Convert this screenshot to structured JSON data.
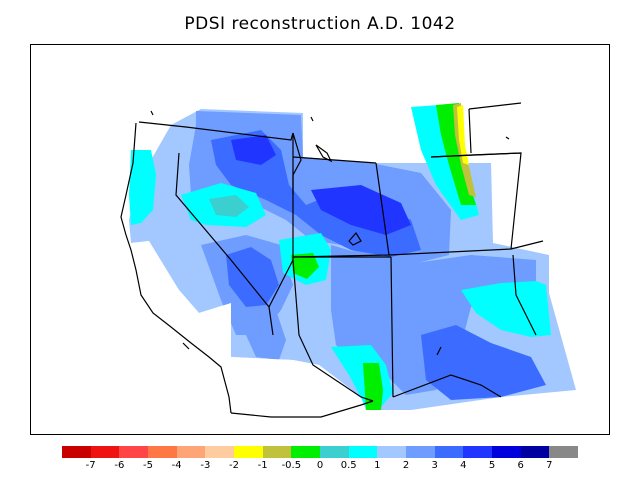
{
  "title": "PDSI reconstruction A.D. 1042",
  "legend": {
    "colors": [
      "#c90000",
      "#ee1212",
      "#ff4545",
      "#ff7745",
      "#ffa477",
      "#ffcca0",
      "#ffff00",
      "#bfc23a",
      "#00ee00",
      "#3bcfcf",
      "#00ffff",
      "#a2c8ff",
      "#6e9cff",
      "#3c6cff",
      "#2035ff",
      "#0000dd",
      "#0000a0",
      "#888888"
    ],
    "tick_labels": [
      "-7",
      "-6",
      "-5",
      "-4",
      "-3",
      "-2",
      "-1",
      "-0.5",
      "0",
      "0.5",
      "1",
      "2",
      "3",
      "4",
      "5",
      "6",
      "7"
    ]
  },
  "map": {
    "region": "Western United States",
    "color_map": {
      "light_blue": "#a2c8ff",
      "mid_blue": "#6e9cff",
      "blue": "#3c6cff",
      "deep_blue": "#2035ff",
      "cyan": "#00ffff",
      "teal": "#3bcfcf",
      "green": "#00ee00",
      "olive": "#bfc23a",
      "yellow": "#ffff00"
    }
  }
}
